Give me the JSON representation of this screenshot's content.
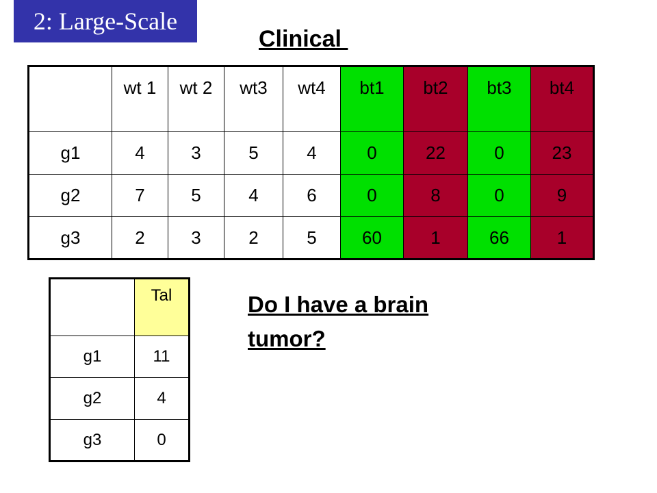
{
  "badge": "2: Large-Scale",
  "title": "Clinical ",
  "main_table": {
    "headers": [
      "",
      "wt 1",
      "wt 2",
      "wt3",
      "wt4",
      "bt1",
      "bt2",
      "bt3",
      "bt4"
    ],
    "rows": [
      [
        "g1",
        "4",
        "3",
        "5",
        "4",
        "0",
        "22",
        "0",
        "23"
      ],
      [
        "g2",
        "7",
        "5",
        "4",
        "6",
        "0",
        "8",
        "0",
        "9"
      ],
      [
        "g3",
        "2",
        "3",
        "2",
        "5",
        "60",
        "1",
        "66",
        "1"
      ]
    ],
    "colors": {
      "green": "#00e000",
      "red": "#a8002a"
    }
  },
  "patient_table": {
    "headers": [
      "",
      "Tal"
    ],
    "rows": [
      [
        "g1",
        "11"
      ],
      [
        "g2",
        "4"
      ],
      [
        "g3",
        "0"
      ]
    ],
    "colors": {
      "yellow": "#ffff99"
    }
  },
  "question": "Do I have a brain tumor?"
}
